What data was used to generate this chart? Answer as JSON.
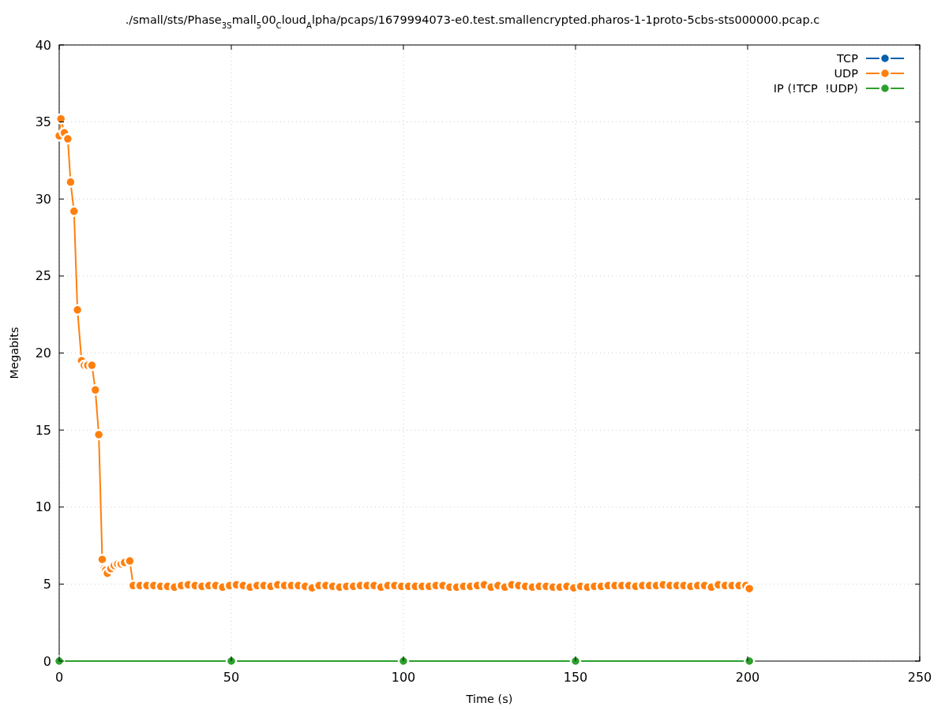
{
  "chart_data": {
    "type": "line",
    "title": "./small/sts/Phase$_{3S}$mall$_{5}$00$_{C}$loud$_{A}$lpha/pcaps/1679994073-e0.test.smallencrypted.pharos-1-1proto-5cbs-sts000000.pcap.c",
    "xlabel": "Time (s)",
    "ylabel": "Megabits",
    "xlim": [
      0,
      250
    ],
    "ylim": [
      0,
      40
    ],
    "xticks": [
      0,
      50,
      100,
      150,
      200,
      250
    ],
    "yticks": [
      0,
      5,
      10,
      15,
      20,
      25,
      30,
      35,
      40
    ],
    "grid": true,
    "legend": "top right",
    "marker": "circle",
    "line_style": "solid",
    "series": [
      {
        "name": "TCP",
        "color": "#0060ad"
      },
      {
        "name": "UDP",
        "color": "#ff7f0e",
        "x": [
          0,
          0.5,
          1.5,
          2.5,
          3.3,
          4.3,
          5.3,
          6.5,
          7.3,
          8.3,
          9.5,
          10.5,
          11.5,
          12.5,
          13,
          13.5,
          14,
          15,
          16,
          17,
          18,
          19,
          20.5,
          21.5,
          23.5,
          25.5,
          27.5,
          29.5,
          31.5,
          33.5,
          35.5,
          37.5,
          39.5,
          41.5,
          43.5,
          45.5,
          47.5,
          49.5,
          51.5,
          53.5,
          55.5,
          57.5,
          59.5,
          61.5,
          63.5,
          65.5,
          67.5,
          69.5,
          71.5,
          73.5,
          75.5,
          77.5,
          79.5,
          81.5,
          83.5,
          85.5,
          87.5,
          89.5,
          91.5,
          93.5,
          95.5,
          97.5,
          99.5,
          101.5,
          103.5,
          105.5,
          107.5,
          109.5,
          111.5,
          113.5,
          115.5,
          117.5,
          119.5,
          121.5,
          123.5,
          125.5,
          127.5,
          129.5,
          131.5,
          133.5,
          135.5,
          137.5,
          139.5,
          141.5,
          143.5,
          145.5,
          147.5,
          149.5,
          151.5,
          153.5,
          155.5,
          157.5,
          159.5,
          161.5,
          163.5,
          165.5,
          167.5,
          169.5,
          171.5,
          173.5,
          175.5,
          177.5,
          179.5,
          181.5,
          183.5,
          185.5,
          187.5,
          189.5,
          191.5,
          193.5,
          195.5,
          197.5,
          199.5,
          200.5
        ],
        "values": [
          34.1,
          35.2,
          34.3,
          33.9,
          31.1,
          29.2,
          22.8,
          19.5,
          19.2,
          19.2,
          19.2,
          17.6,
          14.7,
          6.6,
          6.0,
          5.9,
          5.7,
          6.0,
          6.2,
          6.3,
          6.3,
          6.4,
          6.5,
          4.9,
          4.9,
          4.9,
          4.9,
          4.85,
          4.85,
          4.8,
          4.9,
          4.95,
          4.9,
          4.85,
          4.9,
          4.9,
          4.8,
          4.9,
          4.95,
          4.9,
          4.8,
          4.9,
          4.9,
          4.85,
          4.95,
          4.9,
          4.9,
          4.9,
          4.85,
          4.75,
          4.9,
          4.9,
          4.85,
          4.8,
          4.85,
          4.85,
          4.9,
          4.9,
          4.9,
          4.8,
          4.9,
          4.9,
          4.85,
          4.85,
          4.85,
          4.85,
          4.85,
          4.9,
          4.9,
          4.8,
          4.8,
          4.85,
          4.85,
          4.9,
          4.95,
          4.8,
          4.9,
          4.8,
          4.95,
          4.9,
          4.85,
          4.8,
          4.85,
          4.85,
          4.8,
          4.8,
          4.85,
          4.75,
          4.85,
          4.8,
          4.85,
          4.85,
          4.9,
          4.9,
          4.9,
          4.9,
          4.85,
          4.9,
          4.9,
          4.9,
          4.95,
          4.9,
          4.9,
          4.9,
          4.85,
          4.9,
          4.9,
          4.8,
          4.95,
          4.9,
          4.9,
          4.9,
          4.9,
          4.7
        ]
      },
      {
        "name": "IP (!TCP  !UDP)",
        "color": "#2ca02c",
        "x": [
          0,
          50,
          100,
          150,
          200.5
        ],
        "values": [
          0,
          0,
          0,
          0,
          0
        ]
      }
    ]
  }
}
